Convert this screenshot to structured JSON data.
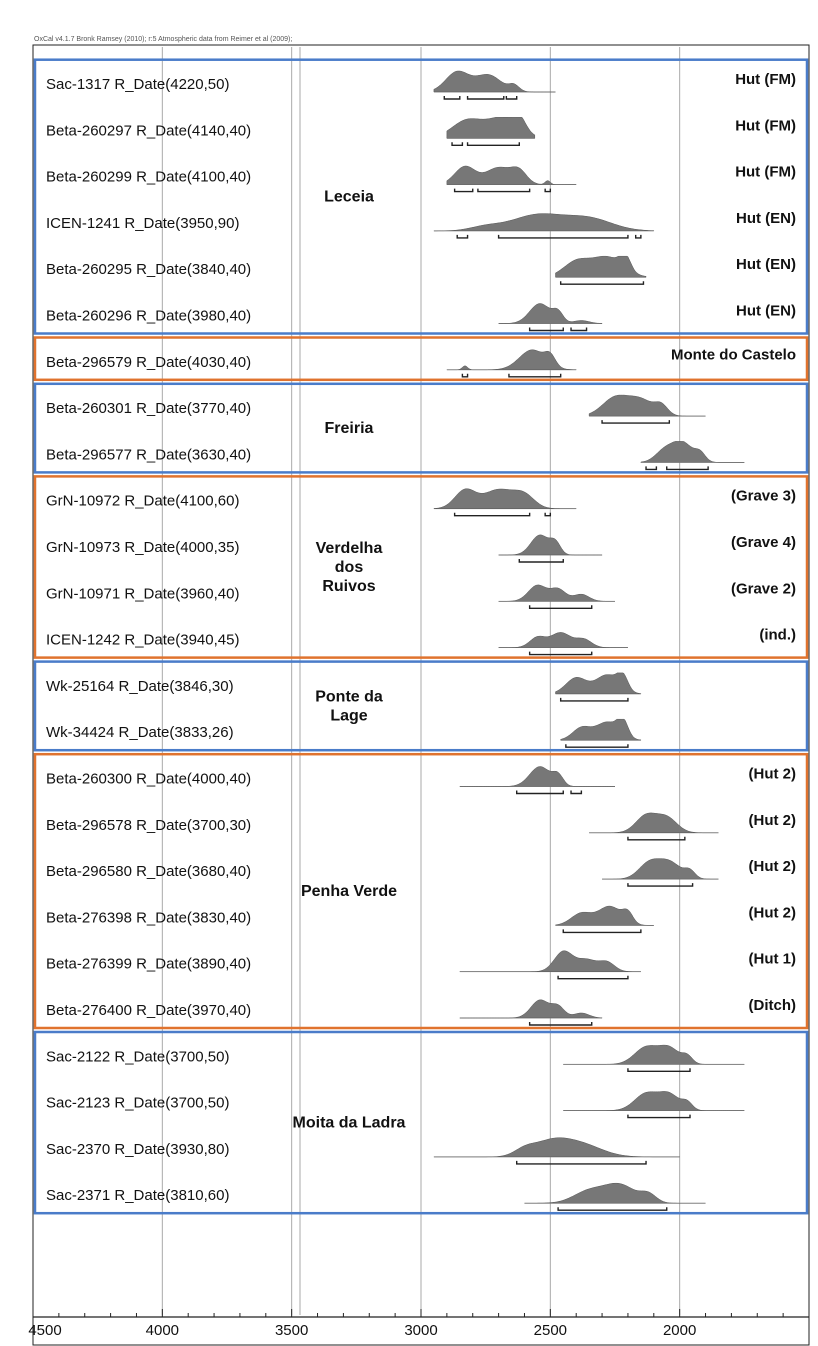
{
  "chart_data": {
    "type": "calibrated-radiocarbon-multiplot",
    "header": "OxCal v4.1.7 Bronk Ramsey (2010); r:5 Atmospheric data from Reimer et al (2009);",
    "x_ticks": [
      4500,
      4000,
      3500,
      3000,
      2500,
      2000
    ],
    "xlim": [
      4500,
      1500
    ],
    "x_reversed": true,
    "vertical_gridlines": [
      4000,
      3500,
      3000,
      2500,
      2000
    ],
    "groups": [
      {
        "site": "Leceia",
        "color": "#4a7cc9",
        "dates": [
          {
            "label": "Sac-1317 R_Date(4220,50)",
            "context": "Hut (FM)",
            "peaks": [
              [
                2860,
                45,
                1.0
              ],
              [
                2740,
                50,
                0.85
              ],
              [
                2640,
                20,
                0.3
              ]
            ],
            "range": [
              2950,
              2480
            ],
            "hpd": [
              [
                2910,
                2850
              ],
              [
                2820,
                2680
              ],
              [
                2670,
                2630
              ]
            ]
          },
          {
            "label": "Beta-260297 R_Date(4140,40)",
            "context": "Hut (FM)",
            "peaks": [
              [
                2820,
                60,
                0.9
              ],
              [
                2680,
                60,
                1.0
              ],
              [
                2620,
                25,
                0.6
              ]
            ],
            "range": [
              2900,
              2560
            ],
            "hpd": [
              [
                2880,
                2840
              ],
              [
                2820,
                2620
              ]
            ]
          },
          {
            "label": "Beta-260299 R_Date(4100,40)",
            "context": "Hut (FM)",
            "peaks": [
              [
                2830,
                40,
                0.9
              ],
              [
                2700,
                50,
                0.85
              ],
              [
                2620,
                30,
                0.6
              ],
              [
                2510,
                10,
                0.2
              ]
            ],
            "range": [
              2900,
              2400
            ],
            "hpd": [
              [
                2870,
                2800
              ],
              [
                2780,
                2580
              ],
              [
                2520,
                2500
              ]
            ]
          },
          {
            "label": "ICEN-1241 R_Date(3950,90)",
            "context": "Hut (EN)",
            "peaks": [
              [
                2550,
                100,
                0.8
              ],
              [
                2350,
                90,
                0.6
              ],
              [
                2750,
                60,
                0.2
              ]
            ],
            "range": [
              2950,
              2100
            ],
            "hpd": [
              [
                2860,
                2820
              ],
              [
                2700,
                2200
              ],
              [
                2170,
                2150
              ]
            ]
          },
          {
            "label": "Beta-260295 R_Date(3840,40)",
            "context": "Hut (EN)",
            "peaks": [
              [
                2400,
                50,
                0.75
              ],
              [
                2280,
                60,
                1.0
              ],
              [
                2210,
                20,
                0.7
              ]
            ],
            "range": [
              2480,
              2130
            ],
            "hpd": [
              [
                2460,
                2140
              ]
            ]
          },
          {
            "label": "Beta-260296 R_Date(3980,40)",
            "context": "Hut (EN)",
            "peaks": [
              [
                2540,
                40,
                1.0
              ],
              [
                2470,
                20,
                0.5
              ],
              [
                2380,
                30,
                0.15
              ]
            ],
            "range": [
              2700,
              2300
            ],
            "hpd": [
              [
                2580,
                2450
              ],
              [
                2420,
                2360
              ]
            ]
          }
        ]
      },
      {
        "site": "Monte do Castelo",
        "color": "#e0732e",
        "dates": [
          {
            "label": "Beta-296579 R_Date(4030,40)",
            "context": "Monte do Castelo",
            "peaks": [
              [
                2570,
                50,
                1.0
              ],
              [
                2500,
                20,
                0.5
              ],
              [
                2830,
                10,
                0.2
              ]
            ],
            "range": [
              2900,
              2400
            ],
            "hpd": [
              [
                2840,
                2820
              ],
              [
                2660,
                2460
              ]
            ]
          }
        ]
      },
      {
        "site": "Freiria",
        "color": "#4a7cc9",
        "dates": [
          {
            "label": "Beta-260301 R_Date(3770,40)",
            "context": "",
            "peaks": [
              [
                2250,
                50,
                0.9
              ],
              [
                2150,
                50,
                0.8
              ],
              [
                2070,
                25,
                0.45
              ]
            ],
            "range": [
              2350,
              1900
            ],
            "hpd": [
              [
                2300,
                2040
              ]
            ]
          },
          {
            "label": "Beta-296577 R_Date(3630,40)",
            "context": "",
            "peaks": [
              [
                2060,
                35,
                0.55
              ],
              [
                1990,
                40,
                1.0
              ],
              [
                1920,
                20,
                0.4
              ]
            ],
            "range": [
              2150,
              1750
            ],
            "hpd": [
              [
                2130,
                2090
              ],
              [
                2050,
                1890
              ]
            ]
          }
        ]
      },
      {
        "site": "Verdelha dos Ruivos",
        "color": "#e0732e",
        "dates": [
          {
            "label": "GrN-10972 R_Date(4100,60)",
            "context": "(Grave 3)",
            "peaks": [
              [
                2830,
                40,
                0.9
              ],
              [
                2700,
                60,
                0.95
              ],
              [
                2600,
                40,
                0.6
              ]
            ],
            "range": [
              2950,
              2400
            ],
            "hpd": [
              [
                2870,
                2580
              ],
              [
                2520,
                2500
              ]
            ]
          },
          {
            "label": "GrN-10973 R_Date(4000,35)",
            "context": "(Grave 4)",
            "peaks": [
              [
                2540,
                35,
                1.0
              ],
              [
                2480,
                20,
                0.55
              ]
            ],
            "range": [
              2700,
              2300
            ],
            "hpd": [
              [
                2620,
                2450
              ]
            ]
          },
          {
            "label": "GrN-10971 R_Date(3960,40)",
            "context": "(Grave 2)",
            "peaks": [
              [
                2550,
                35,
                0.8
              ],
              [
                2470,
                30,
                0.6
              ],
              [
                2380,
                30,
                0.35
              ]
            ],
            "range": [
              2700,
              2250
            ],
            "hpd": [
              [
                2580,
                2340
              ]
            ]
          },
          {
            "label": "ICEN-1242 R_Date(3940,45)",
            "context": "(ind.)",
            "peaks": [
              [
                2550,
                30,
                0.5
              ],
              [
                2460,
                40,
                0.75
              ],
              [
                2370,
                30,
                0.4
              ]
            ],
            "range": [
              2700,
              2200
            ],
            "hpd": [
              [
                2580,
                2340
              ]
            ]
          }
        ]
      },
      {
        "site": "Ponte da Lage",
        "color": "#4a7cc9",
        "dates": [
          {
            "label": "Wk-25164 R_Date(3846,30)",
            "context": "",
            "peaks": [
              [
                2400,
                40,
                0.8
              ],
              [
                2280,
                45,
                0.95
              ],
              [
                2220,
                20,
                0.7
              ]
            ],
            "range": [
              2480,
              2150
            ],
            "hpd": [
              [
                2460,
                2200
              ]
            ]
          },
          {
            "label": "Wk-34424 R_Date(3833,26)",
            "context": "",
            "peaks": [
              [
                2380,
                35,
                0.6
              ],
              [
                2280,
                45,
                0.9
              ],
              [
                2220,
                20,
                0.8
              ]
            ],
            "range": [
              2460,
              2150
            ],
            "hpd": [
              [
                2440,
                2200
              ]
            ]
          }
        ]
      },
      {
        "site": "Penha Verde",
        "color": "#e0732e",
        "dates": [
          {
            "label": "Beta-260300 R_Date(4000,40)",
            "context": "(Hut 2)",
            "peaks": [
              [
                2540,
                40,
                1.0
              ],
              [
                2470,
                20,
                0.5
              ]
            ],
            "range": [
              2850,
              2250
            ],
            "hpd": [
              [
                2630,
                2450
              ],
              [
                2420,
                2380
              ]
            ]
          },
          {
            "label": "Beta-296578 R_Date(3700,30)",
            "context": "(Hut 2)",
            "peaks": [
              [
                2130,
                40,
                0.85
              ],
              [
                2050,
                40,
                0.75
              ]
            ],
            "range": [
              2350,
              1850
            ],
            "hpd": [
              [
                2200,
                1980
              ]
            ]
          },
          {
            "label": "Beta-296580 R_Date(3680,40)",
            "context": "(Hut 2)",
            "peaks": [
              [
                2120,
                40,
                0.75
              ],
              [
                2040,
                45,
                0.85
              ],
              [
                1960,
                20,
                0.35
              ]
            ],
            "range": [
              2300,
              1850
            ],
            "hpd": [
              [
                2200,
                1950
              ]
            ]
          },
          {
            "label": "Beta-276398 R_Date(3830,40)",
            "context": "(Hut 2)",
            "peaks": [
              [
                2380,
                40,
                0.6
              ],
              [
                2270,
                45,
                0.95
              ],
              [
                2200,
                20,
                0.5
              ]
            ],
            "range": [
              2480,
              2100
            ],
            "hpd": [
              [
                2450,
                2150
              ]
            ]
          },
          {
            "label": "Beta-276399 R_Date(3890,40)",
            "context": "(Hut 1)",
            "peaks": [
              [
                2450,
                35,
                1.0
              ],
              [
                2360,
                40,
                0.6
              ],
              [
                2280,
                30,
                0.45
              ]
            ],
            "range": [
              2850,
              2150
            ],
            "hpd": [
              [
                2470,
                2200
              ]
            ]
          },
          {
            "label": "Beta-276400 R_Date(3970,40)",
            "context": "(Ditch)",
            "peaks": [
              [
                2540,
                35,
                0.9
              ],
              [
                2470,
                25,
                0.55
              ],
              [
                2380,
                30,
                0.25
              ]
            ],
            "range": [
              2850,
              2300
            ],
            "hpd": [
              [
                2580,
                2340
              ]
            ]
          }
        ]
      },
      {
        "site": "Moita da Ladra",
        "color": "#4a7cc9",
        "dates": [
          {
            "label": "Sac-2122 R_Date(3700,50)",
            "context": "",
            "peaks": [
              [
                2130,
                45,
                0.85
              ],
              [
                2040,
                40,
                0.8
              ],
              [
                1970,
                20,
                0.35
              ]
            ],
            "range": [
              2450,
              1750
            ],
            "hpd": [
              [
                2200,
                1960
              ]
            ]
          },
          {
            "label": "Sac-2123 R_Date(3700,50)",
            "context": "",
            "peaks": [
              [
                2130,
                45,
                0.85
              ],
              [
                2040,
                40,
                0.8
              ],
              [
                1970,
                20,
                0.35
              ]
            ],
            "range": [
              2450,
              1750
            ],
            "hpd": [
              [
                2200,
                1960
              ]
            ]
          },
          {
            "label": "Sac-2370 R_Date(3930,80)",
            "context": "",
            "peaks": [
              [
                2500,
                70,
                0.7
              ],
              [
                2380,
                80,
                0.6
              ],
              [
                2600,
                40,
                0.3
              ]
            ],
            "range": [
              2950,
              2000
            ],
            "hpd": [
              [
                2630,
                2130
              ]
            ]
          },
          {
            "label": "Sac-2371 R_Date(3810,60)",
            "context": "",
            "peaks": [
              [
                2350,
                60,
                0.6
              ],
              [
                2230,
                60,
                0.9
              ],
              [
                2120,
                30,
                0.4
              ]
            ],
            "range": [
              2600,
              1900
            ],
            "hpd": [
              [
                2470,
                2050
              ]
            ]
          }
        ]
      }
    ]
  }
}
